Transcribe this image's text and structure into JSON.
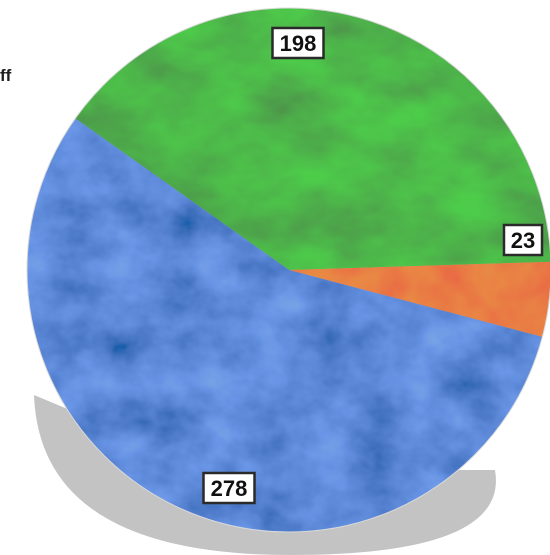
{
  "page": {
    "title_fragment": "ff"
  },
  "chart_data": {
    "type": "pie",
    "values": [
      198,
      23,
      278
    ],
    "data_labels": [
      "198",
      "23",
      "278"
    ],
    "colors": [
      "#3f8f45",
      "#e0532a",
      "#3a63c9"
    ],
    "start_angle_deg": 215.36,
    "direction": "clockwise",
    "legend": "none",
    "title": ""
  }
}
